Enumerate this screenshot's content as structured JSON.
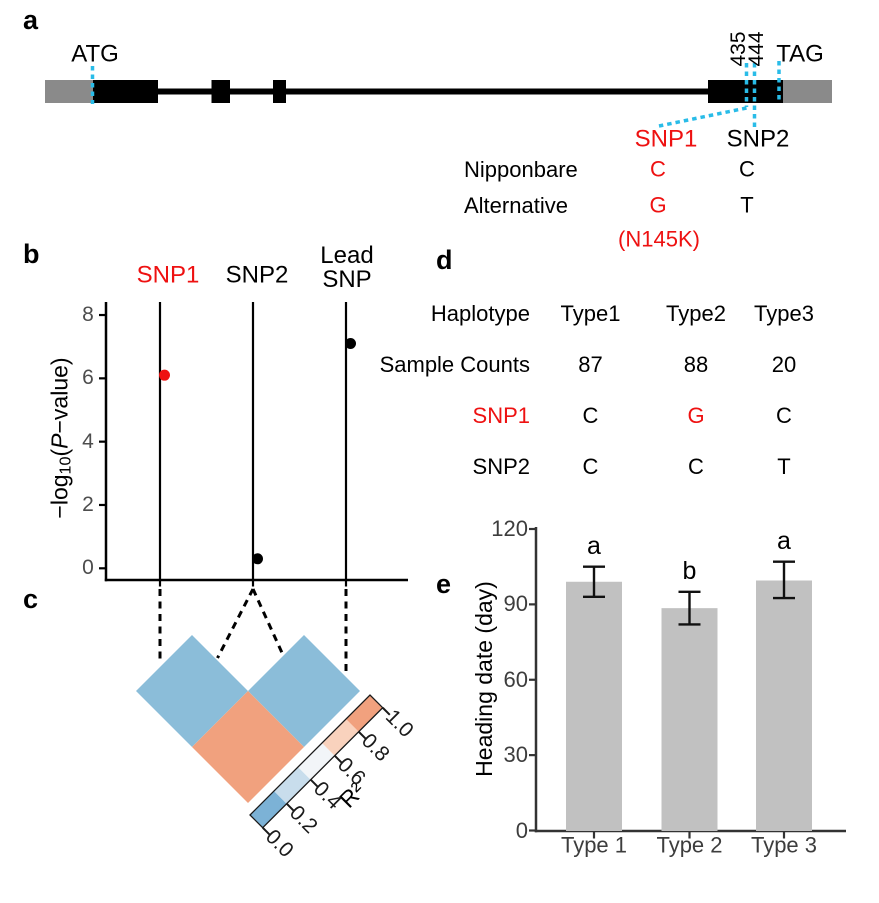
{
  "figure": {
    "background": "#FFFFFF"
  },
  "panels": {
    "a": {
      "letter": "a",
      "start_codon": "ATG",
      "stop_codon": "TAG",
      "position_labels": [
        "435",
        "444"
      ],
      "snp1_label": "SNP1",
      "snp2_label": "SNP2",
      "allele_rows": [
        {
          "name": "Nipponbare",
          "snp1": "C",
          "snp2": "C"
        },
        {
          "name": "Alternative",
          "snp1": "G",
          "snp2": "T"
        }
      ],
      "aa_change": "(N145K)",
      "colors": {
        "snp1_red": "#EE1111",
        "cyan": "#29BCE8",
        "utr_gray": "#8A8A8A",
        "exon_black": "#000000"
      }
    },
    "b": {
      "letter": "b"
    },
    "c": {
      "letter": "c"
    },
    "d": {
      "letter": "d",
      "table": {
        "header_label": "Haplotype",
        "type_headers": [
          "Type1",
          "Type2",
          "Type3"
        ],
        "rows": [
          {
            "label": "Sample Counts",
            "label_color": "#000000",
            "values": [
              "87",
              "88",
              "20"
            ],
            "value_colors": [
              "#000000",
              "#000000",
              "#000000"
            ]
          },
          {
            "label": "SNP1",
            "label_color": "#EE1111",
            "values": [
              "C",
              "G",
              "C"
            ],
            "value_colors": [
              "#000000",
              "#EE1111",
              "#000000"
            ]
          },
          {
            "label": "SNP2",
            "label_color": "#000000",
            "values": [
              "C",
              "C",
              "T"
            ],
            "value_colors": [
              "#000000",
              "#000000",
              "#000000"
            ]
          }
        ]
      }
    },
    "e": {
      "letter": "e"
    }
  },
  "chart_data": [
    {
      "id": "b",
      "type": "scatter",
      "x_labels": [
        "SNP1",
        "SNP2",
        "Lead SNP"
      ],
      "x_label_colors": [
        "#EE1111",
        "#000000",
        "#000000"
      ],
      "values": [
        6.1,
        0.3,
        7.1
      ],
      "point_colors": [
        "#EE1111",
        "#000000",
        "#000000"
      ],
      "ylabel": "-log10(P-value)",
      "ylabel_parts": {
        "pre": "−log",
        "sub": "10",
        "mid": "(",
        "pvar": "P",
        "post": "−value)"
      },
      "yticks": [
        0,
        2,
        4,
        6,
        8
      ],
      "ylim": [
        0,
        8.5
      ]
    },
    {
      "id": "c",
      "type": "heatmap",
      "ld_pairs": [
        {
          "pair": "SNP1-SNP2",
          "r2_approx": 0.2,
          "color": "#8BBDD9"
        },
        {
          "pair": "SNP2-LeadSNP",
          "r2_approx": 0.2,
          "color": "#8BBDD9"
        },
        {
          "pair": "SNP1-LeadSNP",
          "r2_approx": 0.9,
          "color": "#F1A17E"
        }
      ],
      "scale_ticks": [
        "0.0",
        "0.2",
        "0.4",
        "0.6",
        "0.8",
        "1.0"
      ],
      "scale_colors": [
        "#7CB2D6",
        "#C8DDEC",
        "#F2F5F8",
        "#F9D2BD",
        "#F1A17E"
      ],
      "scale_label": "R²"
    },
    {
      "id": "e",
      "type": "bar",
      "categories": [
        "Type 1",
        "Type 2",
        "Type 3"
      ],
      "values": [
        99,
        88.5,
        99.5
      ],
      "error_low": [
        93,
        82,
        92.5
      ],
      "error_high": [
        105,
        95,
        107
      ],
      "sig_letters": [
        "a",
        "b",
        "a"
      ],
      "ylabel": "Heading date (day)",
      "yticks": [
        0,
        30,
        60,
        90,
        120
      ],
      "ylim": [
        0,
        120
      ],
      "bar_color": "#C1C1C1"
    }
  ]
}
